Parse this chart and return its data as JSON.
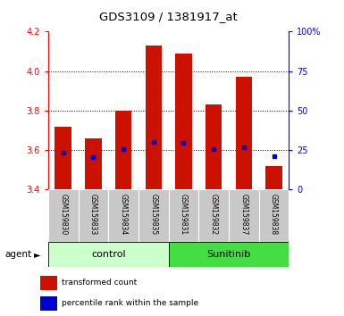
{
  "title": "GDS3109 / 1381917_at",
  "samples": [
    "GSM159830",
    "GSM159833",
    "GSM159834",
    "GSM159835",
    "GSM159831",
    "GSM159832",
    "GSM159837",
    "GSM159838"
  ],
  "bar_values": [
    3.72,
    3.66,
    3.8,
    4.13,
    4.09,
    3.83,
    3.97,
    3.52
  ],
  "bar_base": 3.4,
  "percentile_values": [
    3.585,
    3.565,
    3.605,
    3.64,
    3.638,
    3.605,
    3.615,
    3.57
  ],
  "groups": [
    {
      "label": "control",
      "indices": [
        0,
        1,
        2,
        3
      ],
      "color": "#ccffcc"
    },
    {
      "label": "Sunitinib",
      "indices": [
        4,
        5,
        6,
        7
      ],
      "color": "#44dd44"
    }
  ],
  "bar_color": "#cc1100",
  "percentile_color": "#0000cc",
  "ylim": [
    3.4,
    4.2
  ],
  "y2lim": [
    0,
    100
  ],
  "yticks": [
    3.4,
    3.6,
    3.8,
    4.0,
    4.2
  ],
  "y2ticks": [
    0,
    25,
    50,
    75,
    100
  ],
  "y2ticklabels": [
    "0",
    "25",
    "50",
    "75",
    "100%"
  ],
  "gridlines": [
    3.6,
    3.8,
    4.0
  ],
  "legend_items": [
    {
      "color": "#cc1100",
      "label": "transformed count"
    },
    {
      "color": "#0000cc",
      "label": "percentile rank within the sample"
    }
  ],
  "agent_label": "agent",
  "bar_width": 0.55
}
